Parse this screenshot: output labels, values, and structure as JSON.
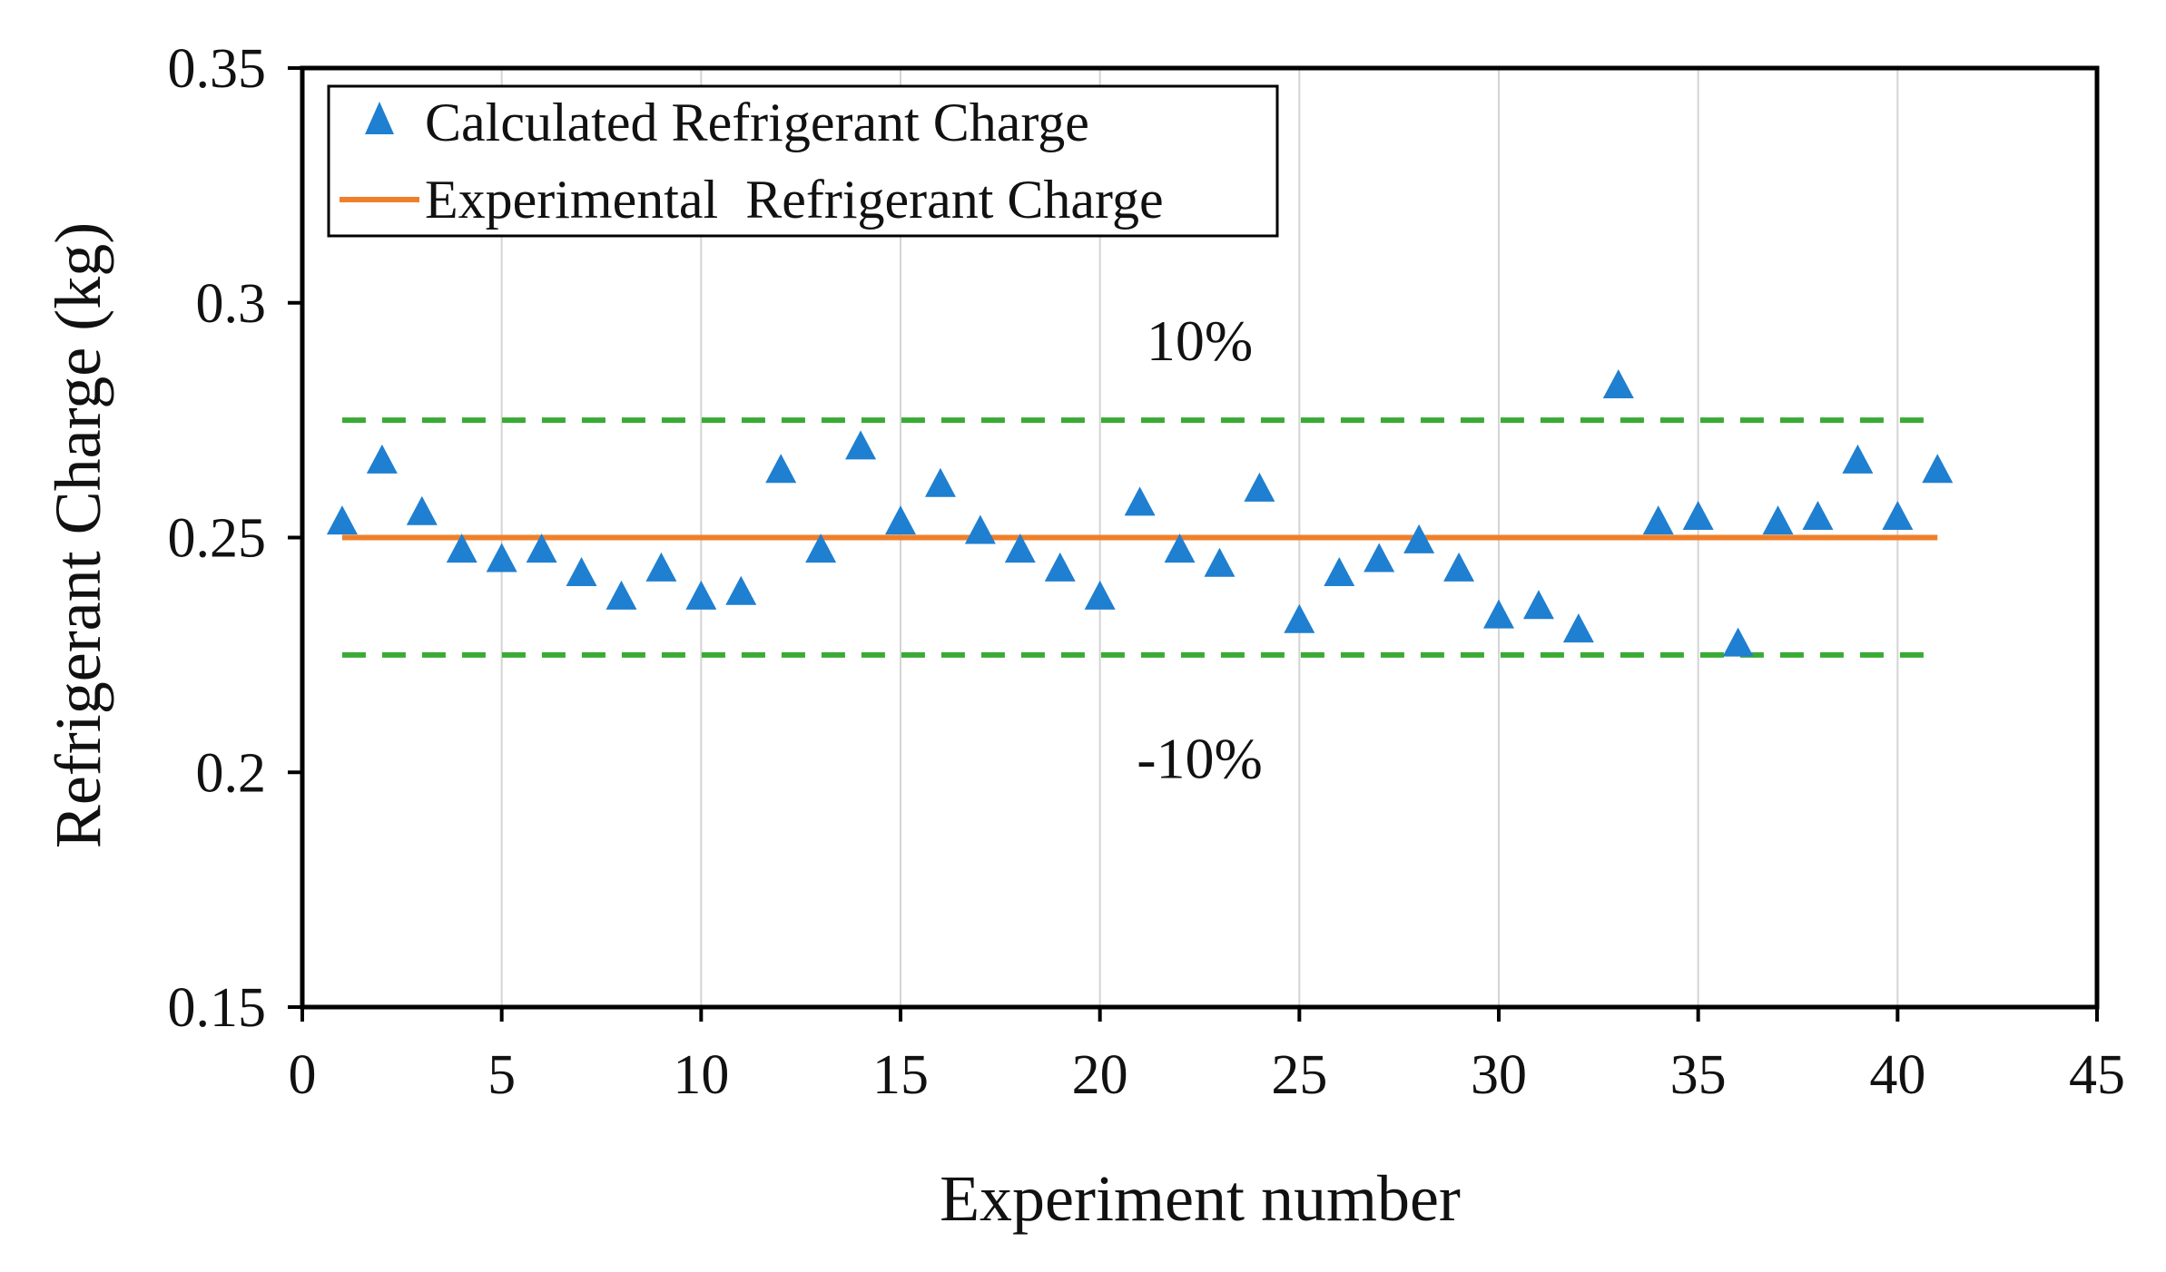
{
  "chart_data": {
    "type": "scatter",
    "title": "",
    "xlabel": "Experiment number",
    "ylabel": "Refrigerant Charge (kg)",
    "xlim": [
      0,
      45
    ],
    "ylim": [
      0.15,
      0.35
    ],
    "x_ticks": [
      0,
      5,
      10,
      15,
      20,
      25,
      30,
      35,
      40,
      45
    ],
    "y_ticks": [
      0.15,
      0.2,
      0.25,
      0.3,
      0.35
    ],
    "x_tick_labels": [
      "0",
      "5",
      "10",
      "15",
      "20",
      "25",
      "30",
      "35",
      "40",
      "45"
    ],
    "y_tick_labels": [
      "0.15",
      "0.2",
      "0.25",
      "0.3",
      "0.35"
    ],
    "grid": "vertical",
    "legend_position": "top-left",
    "series": [
      {
        "name": "Calculated Refrigerant Charge",
        "kind": "scatter",
        "marker": "triangle",
        "color": "#1f7fd0",
        "x": [
          1,
          2,
          3,
          4,
          5,
          6,
          7,
          8,
          9,
          10,
          11,
          12,
          13,
          14,
          15,
          16,
          17,
          18,
          19,
          20,
          21,
          22,
          23,
          24,
          25,
          26,
          27,
          28,
          29,
          30,
          31,
          32,
          33,
          34,
          35,
          36,
          37,
          38,
          39,
          40,
          41
        ],
        "y": [
          0.253,
          0.266,
          0.255,
          0.247,
          0.245,
          0.247,
          0.242,
          0.237,
          0.243,
          0.237,
          0.238,
          0.264,
          0.247,
          0.269,
          0.253,
          0.261,
          0.251,
          0.247,
          0.243,
          0.237,
          0.257,
          0.247,
          0.244,
          0.26,
          0.232,
          0.242,
          0.245,
          0.249,
          0.243,
          0.233,
          0.235,
          0.23,
          0.282,
          0.253,
          0.254,
          0.227,
          0.253,
          0.254,
          0.266,
          0.254,
          0.264
        ]
      },
      {
        "name": "Experimental  Refrigerant Charge",
        "kind": "line",
        "color": "#f07f2a",
        "x": [
          1,
          41
        ],
        "y": [
          0.25,
          0.25
        ]
      }
    ],
    "bands": [
      {
        "label": "10%",
        "y": 0.275,
        "x": [
          1,
          41
        ],
        "color": "#3aaa35",
        "style": "dashed"
      },
      {
        "label": "-10%",
        "y": 0.225,
        "x": [
          1,
          41
        ],
        "color": "#3aaa35",
        "style": "dashed"
      }
    ],
    "annotations": [
      {
        "text": "10%",
        "x": 22.5,
        "y": 0.292
      },
      {
        "text": "-10%",
        "x": 22.5,
        "y": 0.203
      }
    ]
  }
}
